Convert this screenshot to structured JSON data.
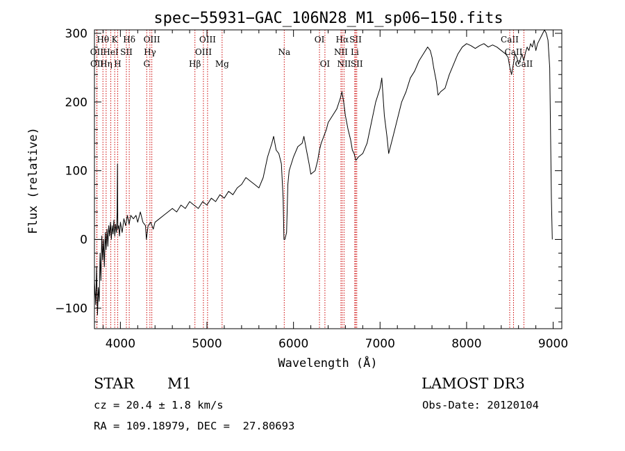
{
  "chart_data": {
    "type": "line",
    "title": "spec−55931−GAC_106N28_M1_sp06−150.fits",
    "xlabel": "Wavelength (Å)",
    "ylabel": "Flux (relative)",
    "xlim": [
      3700,
      9100
    ],
    "ylim": [
      -130,
      305
    ],
    "x_ticks": [
      4000,
      5000,
      6000,
      7000,
      8000,
      9000
    ],
    "y_ticks": [
      -100,
      0,
      100,
      200,
      300
    ],
    "series": [
      {
        "name": "flux",
        "points": [
          [
            3700,
            -60
          ],
          [
            3715,
            -95
          ],
          [
            3725,
            -40
          ],
          [
            3735,
            -110
          ],
          [
            3745,
            -70
          ],
          [
            3755,
            -90
          ],
          [
            3765,
            -20
          ],
          [
            3775,
            -60
          ],
          [
            3785,
            5
          ],
          [
            3795,
            -30
          ],
          [
            3805,
            0
          ],
          [
            3815,
            -40
          ],
          [
            3825,
            10
          ],
          [
            3835,
            -15
          ],
          [
            3845,
            15
          ],
          [
            3855,
            -10
          ],
          [
            3865,
            20
          ],
          [
            3875,
            5
          ],
          [
            3885,
            25
          ],
          [
            3895,
            0
          ],
          [
            3905,
            20
          ],
          [
            3915,
            8
          ],
          [
            3925,
            28
          ],
          [
            3935,
            5
          ],
          [
            3945,
            22
          ],
          [
            3955,
            10
          ],
          [
            3962,
            40
          ],
          [
            3966,
            110
          ],
          [
            3970,
            15
          ],
          [
            3980,
            20
          ],
          [
            3990,
            5
          ],
          [
            4000,
            25
          ],
          [
            4020,
            10
          ],
          [
            4040,
            30
          ],
          [
            4060,
            20
          ],
          [
            4080,
            35
          ],
          [
            4100,
            22
          ],
          [
            4120,
            35
          ],
          [
            4150,
            30
          ],
          [
            4180,
            35
          ],
          [
            4200,
            25
          ],
          [
            4230,
            40
          ],
          [
            4260,
            25
          ],
          [
            4290,
            20
          ],
          [
            4300,
            0
          ],
          [
            4320,
            20
          ],
          [
            4350,
            25
          ],
          [
            4380,
            15
          ],
          [
            4400,
            25
          ],
          [
            4450,
            30
          ],
          [
            4500,
            35
          ],
          [
            4550,
            40
          ],
          [
            4600,
            45
          ],
          [
            4650,
            40
          ],
          [
            4700,
            50
          ],
          [
            4750,
            45
          ],
          [
            4800,
            55
          ],
          [
            4850,
            50
          ],
          [
            4900,
            45
          ],
          [
            4950,
            55
          ],
          [
            5000,
            50
          ],
          [
            5050,
            60
          ],
          [
            5100,
            55
          ],
          [
            5150,
            65
          ],
          [
            5200,
            60
          ],
          [
            5250,
            70
          ],
          [
            5300,
            65
          ],
          [
            5350,
            75
          ],
          [
            5400,
            80
          ],
          [
            5450,
            90
          ],
          [
            5500,
            85
          ],
          [
            5550,
            80
          ],
          [
            5600,
            75
          ],
          [
            5650,
            90
          ],
          [
            5700,
            120
          ],
          [
            5750,
            140
          ],
          [
            5770,
            150
          ],
          [
            5800,
            130
          ],
          [
            5830,
            125
          ],
          [
            5860,
            110
          ],
          [
            5880,
            60
          ],
          [
            5890,
            0
          ],
          [
            5900,
            0
          ],
          [
            5920,
            10
          ],
          [
            5935,
            80
          ],
          [
            5950,
            100
          ],
          [
            6000,
            120
          ],
          [
            6050,
            135
          ],
          [
            6100,
            140
          ],
          [
            6120,
            150
          ],
          [
            6150,
            130
          ],
          [
            6180,
            110
          ],
          [
            6200,
            95
          ],
          [
            6250,
            100
          ],
          [
            6280,
            115
          ],
          [
            6300,
            130
          ],
          [
            6320,
            140
          ],
          [
            6350,
            150
          ],
          [
            6380,
            160
          ],
          [
            6400,
            170
          ],
          [
            6450,
            180
          ],
          [
            6500,
            190
          ],
          [
            6540,
            205
          ],
          [
            6560,
            215
          ],
          [
            6580,
            200
          ],
          [
            6600,
            180
          ],
          [
            6630,
            160
          ],
          [
            6660,
            145
          ],
          [
            6680,
            130
          ],
          [
            6700,
            125
          ],
          [
            6720,
            115
          ],
          [
            6750,
            120
          ],
          [
            6800,
            125
          ],
          [
            6850,
            140
          ],
          [
            6900,
            170
          ],
          [
            6950,
            200
          ],
          [
            7000,
            220
          ],
          [
            7020,
            235
          ],
          [
            7050,
            180
          ],
          [
            7080,
            150
          ],
          [
            7100,
            125
          ],
          [
            7150,
            150
          ],
          [
            7200,
            175
          ],
          [
            7250,
            200
          ],
          [
            7300,
            215
          ],
          [
            7350,
            235
          ],
          [
            7400,
            245
          ],
          [
            7450,
            260
          ],
          [
            7500,
            270
          ],
          [
            7550,
            280
          ],
          [
            7580,
            275
          ],
          [
            7600,
            265
          ],
          [
            7620,
            250
          ],
          [
            7650,
            230
          ],
          [
            7670,
            210
          ],
          [
            7700,
            215
          ],
          [
            7750,
            220
          ],
          [
            7800,
            240
          ],
          [
            7850,
            255
          ],
          [
            7900,
            270
          ],
          [
            7950,
            280
          ],
          [
            8000,
            285
          ],
          [
            8050,
            282
          ],
          [
            8100,
            278
          ],
          [
            8150,
            282
          ],
          [
            8200,
            285
          ],
          [
            8250,
            280
          ],
          [
            8300,
            283
          ],
          [
            8350,
            280
          ],
          [
            8400,
            275
          ],
          [
            8450,
            270
          ],
          [
            8480,
            265
          ],
          [
            8500,
            250
          ],
          [
            8520,
            240
          ],
          [
            8540,
            255
          ],
          [
            8560,
            270
          ],
          [
            8580,
            265
          ],
          [
            8600,
            255
          ],
          [
            8620,
            262
          ],
          [
            8640,
            270
          ],
          [
            8660,
            260
          ],
          [
            8680,
            272
          ],
          [
            8700,
            280
          ],
          [
            8720,
            275
          ],
          [
            8740,
            285
          ],
          [
            8760,
            280
          ],
          [
            8780,
            290
          ],
          [
            8800,
            275
          ],
          [
            8820,
            285
          ],
          [
            8840,
            290
          ],
          [
            8860,
            295
          ],
          [
            8880,
            300
          ],
          [
            8900,
            305
          ],
          [
            8920,
            300
          ],
          [
            8940,
            290
          ],
          [
            8960,
            250
          ],
          [
            8980,
            60
          ],
          [
            8990,
            0
          ]
        ]
      }
    ],
    "spectral_lines": [
      {
        "name": "Hθ",
        "wavelength": 3798,
        "row": 0
      },
      {
        "name": "OII",
        "wavelength": 3727,
        "row": 1
      },
      {
        "name": "OII",
        "wavelength": 3729,
        "row": 2
      },
      {
        "name": "Hη",
        "wavelength": 3835,
        "row": 2
      },
      {
        "name": "HeI",
        "wavelength": 3889,
        "row": 1
      },
      {
        "name": "K",
        "wavelength": 3934,
        "row": 0
      },
      {
        "name": "SII",
        "wavelength": 4069,
        "row": 1
      },
      {
        "name": "H",
        "wavelength": 3969,
        "row": 2
      },
      {
        "name": "Hδ",
        "wavelength": 4102,
        "row": 0
      },
      {
        "name": "OIII",
        "wavelength": 4363,
        "row": 0
      },
      {
        "name": "Hγ",
        "wavelength": 4341,
        "row": 1
      },
      {
        "name": "G",
        "wavelength": 4304,
        "row": 2
      },
      {
        "name": "Hβ",
        "wavelength": 4861,
        "row": 2
      },
      {
        "name": "OIII",
        "wavelength": 5007,
        "row": 0
      },
      {
        "name": "OIII",
        "wavelength": 4959,
        "row": 1
      },
      {
        "name": "Mg",
        "wavelength": 5175,
        "row": 2
      },
      {
        "name": "Na",
        "wavelength": 5893,
        "row": 1
      },
      {
        "name": "OI",
        "wavelength": 6300,
        "row": 0
      },
      {
        "name": "OI",
        "wavelength": 6363,
        "row": 2
      },
      {
        "name": "Hα",
        "wavelength": 6563,
        "row": 0
      },
      {
        "name": "NII",
        "wavelength": 6548,
        "row": 1
      },
      {
        "name": "NII",
        "wavelength": 6584,
        "row": 2
      },
      {
        "name": "SII",
        "wavelength": 6717,
        "row": 0
      },
      {
        "name": "Li",
        "wavelength": 6708,
        "row": 1
      },
      {
        "name": "SII",
        "wavelength": 6731,
        "row": 2
      },
      {
        "name": "CaII",
        "wavelength": 8498,
        "row": 0
      },
      {
        "name": "CaII",
        "wavelength": 8542,
        "row": 1
      },
      {
        "name": "CaII",
        "wavelength": 8662,
        "row": 2
      }
    ]
  },
  "info": {
    "object_class": "STAR",
    "subclass": "M1",
    "survey": "LAMOST DR3",
    "redshift_line": "cz = 20.4 ± 1.8 km/s",
    "obs_date_line": "Obs-Date: 20120104",
    "coords_line": "RA = 109.18979, DEC =  27.80693"
  },
  "colors": {
    "line_marker": "#cc0000",
    "spectrum": "#000000"
  }
}
